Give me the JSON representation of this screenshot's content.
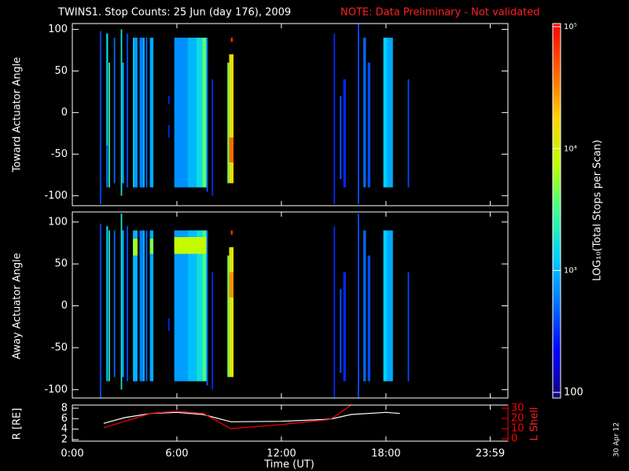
{
  "chart_data": [
    {
      "type": "heatmap",
      "title": "TWINS1. Stop Counts: 25 Jun (day 176), 2009",
      "note": "NOTE: Data Preliminary - Not validated",
      "ylabel": "Toward Actuator Angle",
      "xlim": [
        0,
        25
      ],
      "ylim": [
        -112,
        107
      ],
      "yticks": [
        -100,
        -50,
        0,
        50,
        100
      ],
      "log_color": true,
      "clim": [
        90,
        106000
      ],
      "cticks": [
        {
          "value": 100000,
          "label": "10⁵"
        },
        {
          "value": 10000,
          "label": "10⁴"
        },
        {
          "value": 1000,
          "label": "10³"
        },
        100
      ],
      "clabel": "LOG₁₀(Total Stops per Scan)",
      "colormap": [
        "#14007a",
        "#0000ff",
        "#0070ff",
        "#00d0ff",
        "#40ff90",
        "#c0ff00",
        "#ffd000",
        "#ff6000",
        "#ff0000"
      ],
      "cells": [
        [
          1.58,
          1.66,
          -110,
          98,
          400
        ],
        [
          1.95,
          2.05,
          -40,
          95,
          1500
        ],
        [
          1.95,
          2.05,
          -90,
          -40,
          600
        ],
        [
          2.08,
          2.16,
          -90,
          60,
          2500
        ],
        [
          2.38,
          2.46,
          -85,
          90,
          500
        ],
        [
          2.78,
          2.86,
          -100,
          100,
          1800
        ],
        [
          2.86,
          2.96,
          -85,
          60,
          900
        ],
        [
          3.12,
          3.2,
          -90,
          95,
          400
        ],
        [
          3.48,
          3.58,
          -90,
          90,
          1200
        ],
        [
          3.58,
          3.74,
          -90,
          90,
          800
        ],
        [
          3.86,
          4.05,
          -90,
          90,
          600
        ],
        [
          4.05,
          4.15,
          -90,
          90,
          1000
        ],
        [
          4.22,
          4.3,
          -90,
          90,
          500
        ],
        [
          4.45,
          4.65,
          -90,
          90,
          900
        ],
        [
          5.5,
          5.58,
          -30,
          -15,
          300
        ],
        [
          5.5,
          5.58,
          10,
          20,
          300
        ],
        [
          5.85,
          6.6,
          -90,
          90,
          700
        ],
        [
          6.6,
          7.1,
          -90,
          90,
          1000
        ],
        [
          7.1,
          7.45,
          -90,
          90,
          1500
        ],
        [
          7.45,
          7.7,
          -90,
          90,
          3500
        ],
        [
          7.7,
          7.78,
          -95,
          90,
          500
        ],
        [
          8.0,
          8.08,
          -100,
          40,
          300
        ],
        [
          8.9,
          9.0,
          -85,
          60,
          4000
        ],
        [
          9.0,
          9.25,
          -85,
          70,
          15000
        ],
        [
          9.0,
          9.25,
          -60,
          -30,
          40000
        ],
        [
          9.1,
          9.2,
          85,
          90,
          60000
        ],
        [
          15.0,
          15.08,
          -110,
          95,
          300
        ],
        [
          15.35,
          15.45,
          -80,
          20,
          400
        ],
        [
          15.55,
          15.7,
          -90,
          40,
          300
        ],
        [
          16.38,
          16.46,
          -110,
          110,
          400
        ],
        [
          16.7,
          16.85,
          -90,
          90,
          500
        ],
        [
          16.95,
          17.1,
          -90,
          60,
          400
        ],
        [
          17.85,
          18.05,
          -90,
          90,
          1300
        ],
        [
          18.05,
          18.4,
          -90,
          90,
          900
        ],
        [
          19.25,
          19.33,
          -90,
          40,
          400
        ]
      ]
    },
    {
      "type": "heatmap",
      "ylabel": "Away Actuator Angle",
      "xlim": [
        0,
        25
      ],
      "ylim": [
        -110,
        112
      ],
      "yticks": [
        -100,
        -50,
        0,
        50,
        100
      ],
      "cells": [
        [
          1.58,
          1.66,
          -110,
          98,
          400
        ],
        [
          1.95,
          2.05,
          -90,
          95,
          1200
        ],
        [
          2.08,
          2.16,
          -90,
          90,
          2000
        ],
        [
          2.38,
          2.46,
          -85,
          90,
          500
        ],
        [
          2.78,
          2.86,
          -100,
          110,
          1800
        ],
        [
          2.86,
          2.96,
          -85,
          90,
          900
        ],
        [
          3.12,
          3.2,
          -90,
          95,
          400
        ],
        [
          3.48,
          3.74,
          -90,
          90,
          1000
        ],
        [
          3.48,
          3.74,
          60,
          80,
          6000
        ],
        [
          3.86,
          4.05,
          -90,
          90,
          600
        ],
        [
          4.05,
          4.15,
          -90,
          90,
          1000
        ],
        [
          4.22,
          4.3,
          -90,
          90,
          500
        ],
        [
          4.45,
          4.65,
          -90,
          90,
          900
        ],
        [
          4.45,
          4.65,
          62,
          80,
          5000
        ],
        [
          5.5,
          5.58,
          -30,
          -15,
          300
        ],
        [
          5.85,
          6.6,
          -90,
          90,
          800
        ],
        [
          6.6,
          7.1,
          -90,
          90,
          1100
        ],
        [
          7.1,
          7.45,
          -90,
          90,
          1600
        ],
        [
          7.45,
          7.7,
          -90,
          90,
          3000
        ],
        [
          5.85,
          7.7,
          62,
          82,
          8000
        ],
        [
          7.7,
          7.78,
          -95,
          90,
          500
        ],
        [
          8.0,
          8.08,
          -100,
          40,
          300
        ],
        [
          8.9,
          9.0,
          -85,
          60,
          4000
        ],
        [
          9.0,
          9.25,
          -85,
          70,
          12000
        ],
        [
          9.0,
          9.25,
          10,
          40,
          30000
        ],
        [
          9.1,
          9.2,
          85,
          90,
          60000
        ],
        [
          15.0,
          15.08,
          -110,
          95,
          300
        ],
        [
          15.35,
          15.45,
          -80,
          20,
          400
        ],
        [
          15.55,
          15.7,
          -90,
          40,
          300
        ],
        [
          16.38,
          16.46,
          -110,
          110,
          400
        ],
        [
          16.7,
          16.85,
          -90,
          90,
          500
        ],
        [
          16.95,
          17.1,
          -90,
          60,
          400
        ],
        [
          17.85,
          18.05,
          -90,
          90,
          1300
        ],
        [
          18.05,
          18.4,
          -90,
          90,
          900
        ],
        [
          19.25,
          19.33,
          -90,
          40,
          400
        ]
      ]
    },
    {
      "type": "line",
      "xlabel": "Time (UT)",
      "ylabel": "R [RE]",
      "y2label": "L Shell",
      "annotation": "30 Apr 12",
      "xlim": [
        0,
        25
      ],
      "xticks": [
        {
          "value": 0,
          "label": "0:00"
        },
        {
          "value": 6,
          "label": "6:00"
        },
        {
          "value": 12,
          "label": "12:00"
        },
        {
          "value": 18,
          "label": "18:00"
        },
        {
          "value": 23.983,
          "label": "23:59"
        }
      ],
      "ylim": [
        1.7,
        8.6
      ],
      "yticks": [
        2,
        4,
        6,
        8
      ],
      "y2lim": [
        -2.3,
        33.1
      ],
      "y2ticks": [
        0,
        10,
        20,
        30
      ],
      "y2color": "#ff0000",
      "x": [
        1.8,
        3,
        4.5,
        6,
        7.5,
        9.1,
        12,
        14.8,
        16,
        18,
        18.8
      ],
      "series": [
        {
          "color": "#ffffff",
          "values": [
            5.1,
            6.2,
            7,
            7.2,
            6.8,
            5.4,
            5.5,
            5.9,
            6.8,
            7.2,
            7.0
          ]
        },
        {
          "color": "#ff0000",
          "axis": "y2",
          "values": [
            11,
            17,
            25,
            27,
            25,
            10,
            14,
            19,
            33,
            null,
            null
          ]
        }
      ]
    }
  ]
}
